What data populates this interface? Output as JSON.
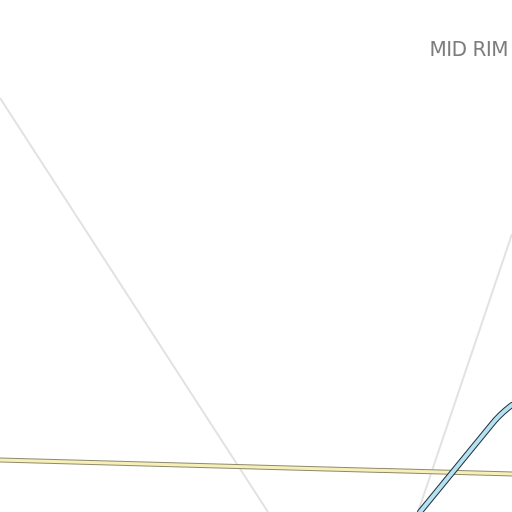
{
  "map": {
    "place_label": "MID RIM",
    "colors": {
      "background": "#ffffff",
      "minor_road": "#e2e2e2",
      "primary_road_fill": "#f6efb8",
      "primary_road_casing": "#8f8a6d",
      "waterway_fill": "#b5e2f2",
      "waterway_casing": "#1f2d33",
      "label_text": "#7d7d7d"
    }
  }
}
